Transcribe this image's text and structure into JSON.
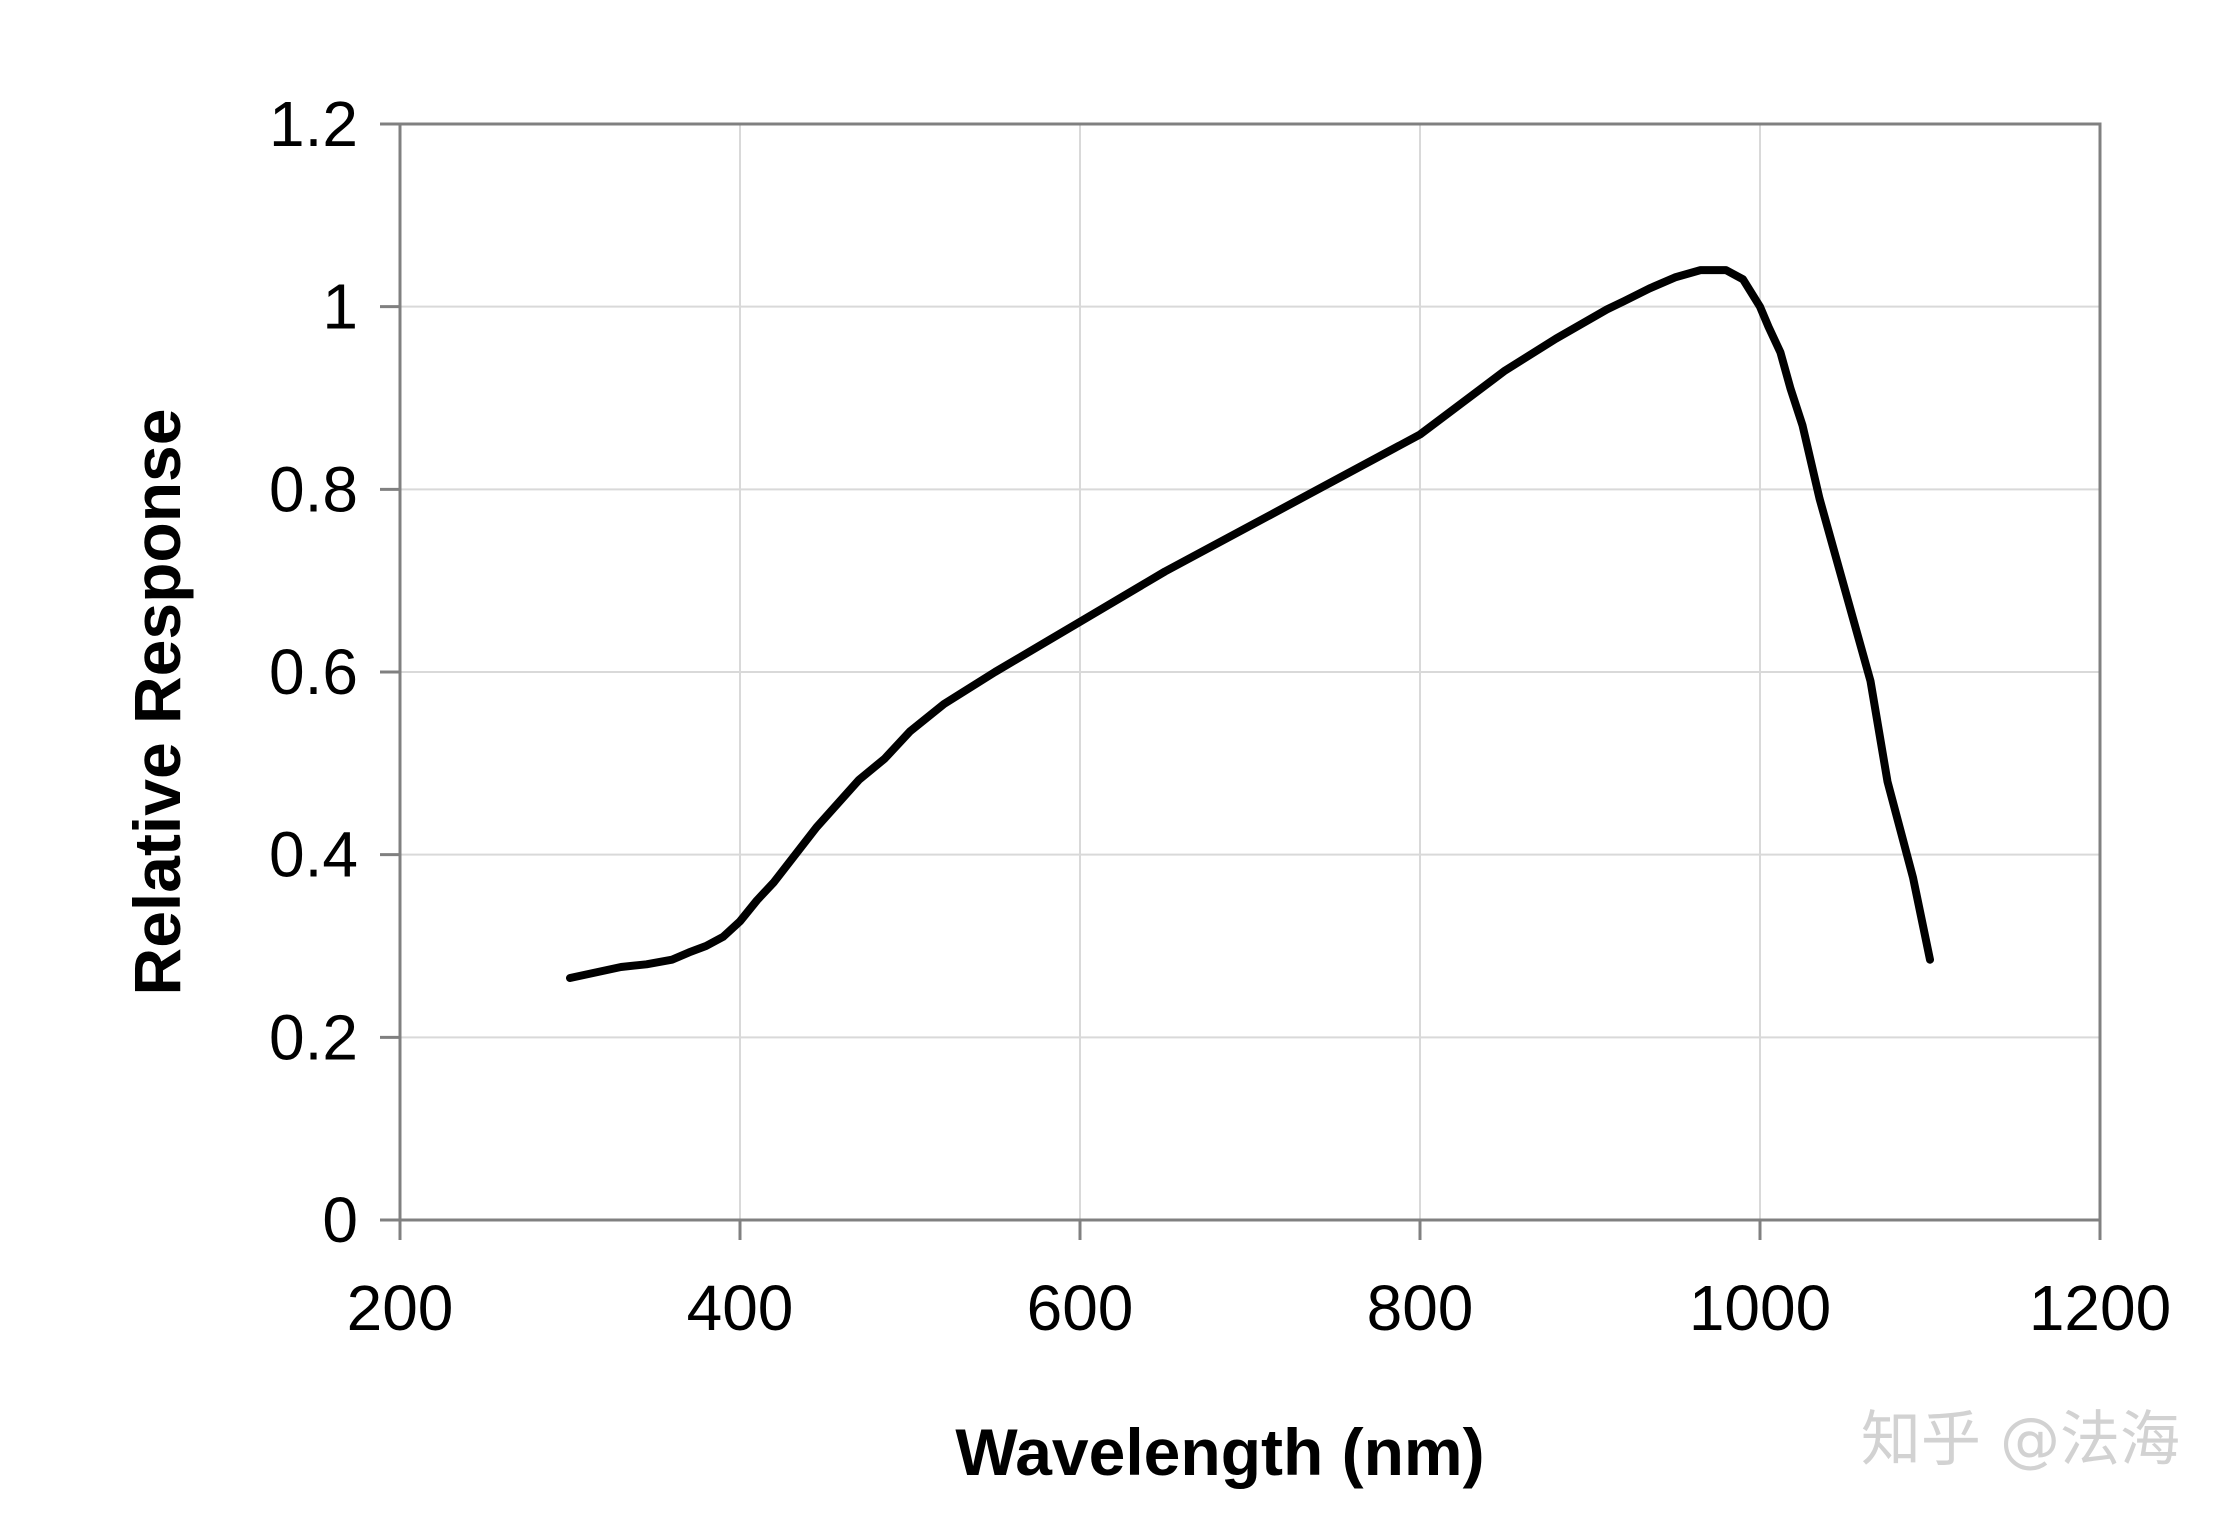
{
  "chart_data": {
    "type": "line",
    "title": "",
    "xlabel": "Wavelength (nm)",
    "ylabel": "Relative Response",
    "xlim": [
      200,
      1200
    ],
    "ylim": [
      0,
      1.2
    ],
    "x_ticks": [
      200,
      400,
      600,
      800,
      1000,
      1200
    ],
    "y_ticks": [
      0,
      0.2,
      0.4,
      0.6,
      0.8,
      1,
      1.2
    ],
    "x_tick_labels": [
      "200",
      "400",
      "600",
      "800",
      "1000",
      "1200"
    ],
    "y_tick_labels": [
      "0",
      "0.2",
      "0.4",
      "0.6",
      "0.8",
      "1",
      "1.2"
    ],
    "grid": true,
    "series": [
      {
        "name": "Relative Response",
        "color": "#000000",
        "x": [
          300,
          330,
          345,
          360,
          370,
          380,
          390,
          400,
          410,
          420,
          445,
          470,
          485,
          500,
          520,
          550,
          600,
          650,
          700,
          750,
          800,
          825,
          850,
          880,
          910,
          920,
          935,
          950,
          965,
          980,
          990,
          1000,
          1005,
          1012,
          1018,
          1025,
          1035,
          1050,
          1065,
          1075,
          1090,
          1100
        ],
        "y": [
          0.265,
          0.277,
          0.28,
          0.285,
          0.293,
          0.3,
          0.31,
          0.327,
          0.35,
          0.37,
          0.43,
          0.482,
          0.505,
          0.535,
          0.565,
          0.6,
          0.655,
          0.71,
          0.76,
          0.81,
          0.86,
          0.895,
          0.93,
          0.965,
          0.997,
          1.006,
          1.02,
          1.032,
          1.04,
          1.04,
          1.03,
          1.0,
          0.978,
          0.95,
          0.91,
          0.87,
          0.79,
          0.69,
          0.59,
          0.48,
          0.375,
          0.285
        ]
      }
    ]
  },
  "watermark": {
    "text": "知乎 @法海"
  },
  "colors": {
    "line": "#000000",
    "grid": "#d9d9d9",
    "axis": "#808080",
    "watermark": "#d2d2d2"
  }
}
